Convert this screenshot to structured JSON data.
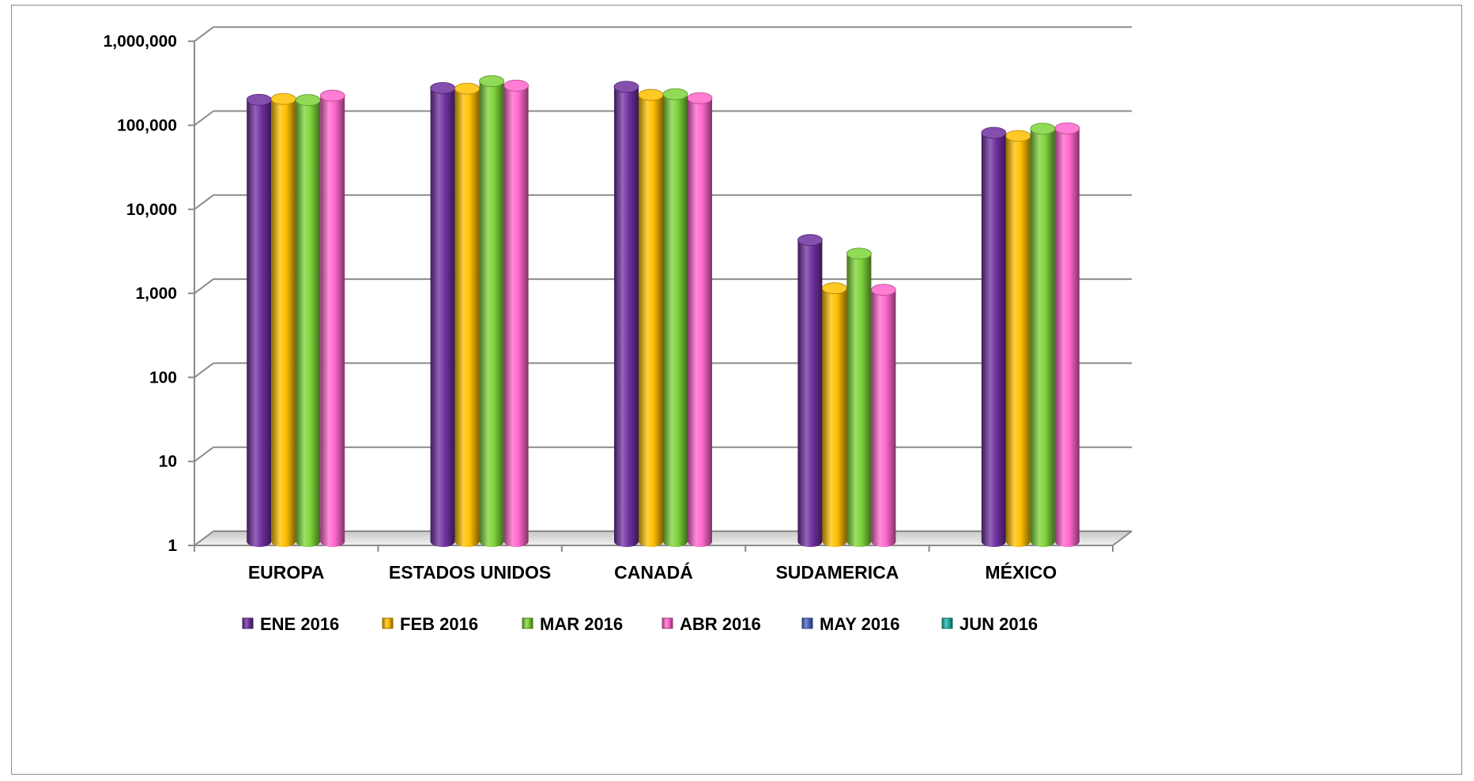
{
  "chart_data": {
    "type": "bar",
    "style": "3d-cylinder",
    "yscale": "log",
    "ylim": [
      1,
      1000000
    ],
    "yticks": [
      "1",
      "10",
      "100",
      "1,000",
      "10,000",
      "100,000",
      "1,000,000"
    ],
    "categories": [
      "EUROPA",
      "ESTADOS UNIDOS",
      "CANADÁ",
      "SUDAMERICA",
      "MÉXICO"
    ],
    "series": [
      {
        "name": "ENE 2016",
        "color": "#7030a0",
        "values": [
          210000,
          290000,
          300000,
          4500,
          85000
        ]
      },
      {
        "name": "FEB 2016",
        "color": "#ffc000",
        "values": [
          215000,
          285000,
          240000,
          1200,
          78000
        ]
      },
      {
        "name": "MAR 2016",
        "color": "#7ed33a",
        "values": [
          208000,
          350000,
          245000,
          3100,
          95000
        ]
      },
      {
        "name": "ABR 2016",
        "color": "#ff66cc",
        "values": [
          235000,
          310000,
          220000,
          1150,
          96000
        ]
      },
      {
        "name": "MAY 2016",
        "color": "#4f68c8",
        "values": [
          null,
          null,
          null,
          null,
          null
        ]
      },
      {
        "name": "JUN 2016",
        "color": "#1fb5a8",
        "values": [
          null,
          null,
          null,
          null,
          null
        ]
      }
    ],
    "legend_position": "bottom",
    "grid": true,
    "title": "",
    "xlabel": "",
    "ylabel": ""
  }
}
